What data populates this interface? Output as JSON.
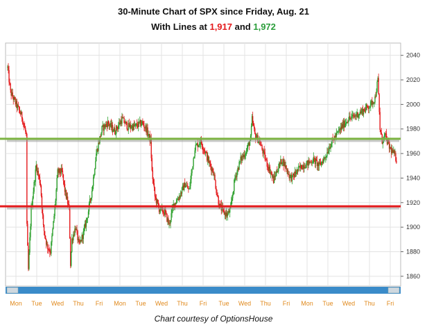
{
  "title": {
    "line1": "30-Minute Chart of SPX since Friday, Aug. 21",
    "line2_prefix": "With Lines at ",
    "line2_value1": "1,917",
    "line2_middle": " and ",
    "line2_value2": "1,972"
  },
  "credit": "Chart courtesy of OptionsHouse",
  "colors": {
    "up": "#2ca02c",
    "down": "#e41a1c",
    "upper_line": "#7cb342",
    "lower_line": "#e41a1c",
    "scrollbar": "#3a8bc9",
    "axis_text": "#333333",
    "day_text": "#e08a1e"
  },
  "chart_data": {
    "type": "candlestick",
    "title": "30-Minute Chart of SPX since Friday, Aug. 21",
    "x_ticks": [
      "Mon",
      "Tue",
      "Wed",
      "Thu",
      "Fri",
      "Mon",
      "Tue",
      "Wed",
      "Thu",
      "Fri",
      "Tue",
      "Wed",
      "Thu",
      "Fri",
      "Mon",
      "Tue",
      "Wed",
      "Thu",
      "Fri"
    ],
    "y_ticks": [
      1860,
      1880,
      1900,
      1920,
      1940,
      1960,
      1980,
      2000,
      2020,
      2040
    ],
    "ylim": [
      1852,
      2050
    ],
    "horizontal_lines": [
      {
        "value": 1972,
        "color": "#7cb342"
      },
      {
        "value": 1917,
        "color": "#e41a1c"
      }
    ],
    "grid": true,
    "price_path": [
      [
        0,
        2030
      ],
      [
        4,
        2010
      ],
      [
        12,
        2000
      ],
      [
        20,
        1990
      ],
      [
        26,
        1975
      ],
      [
        27,
        1900
      ],
      [
        29,
        1865
      ],
      [
        33,
        1915
      ],
      [
        40,
        1950
      ],
      [
        46,
        1935
      ],
      [
        50,
        1900
      ],
      [
        55,
        1885
      ],
      [
        60,
        1880
      ],
      [
        66,
        1915
      ],
      [
        70,
        1945
      ],
      [
        76,
        1945
      ],
      [
        80,
        1930
      ],
      [
        86,
        1915
      ],
      [
        88,
        1870
      ],
      [
        90,
        1890
      ],
      [
        95,
        1900
      ],
      [
        100,
        1885
      ],
      [
        106,
        1895
      ],
      [
        112,
        1910
      ],
      [
        118,
        1930
      ],
      [
        124,
        1960
      ],
      [
        132,
        1980
      ],
      [
        140,
        1985
      ],
      [
        150,
        1978
      ],
      [
        160,
        1988
      ],
      [
        168,
        1982
      ],
      [
        178,
        1982
      ],
      [
        188,
        1985
      ],
      [
        194,
        1980
      ],
      [
        200,
        1970
      ],
      [
        202,
        1945
      ],
      [
        206,
        1925
      ],
      [
        212,
        1915
      ],
      [
        220,
        1912
      ],
      [
        226,
        1902
      ],
      [
        232,
        1918
      ],
      [
        240,
        1925
      ],
      [
        248,
        1935
      ],
      [
        254,
        1930
      ],
      [
        262,
        1965
      ],
      [
        270,
        1970
      ],
      [
        276,
        1962
      ],
      [
        282,
        1952
      ],
      [
        288,
        1945
      ],
      [
        292,
        1930
      ],
      [
        296,
        1918
      ],
      [
        302,
        1912
      ],
      [
        308,
        1910
      ],
      [
        312,
        1915
      ],
      [
        318,
        1940
      ],
      [
        326,
        1955
      ],
      [
        334,
        1962
      ],
      [
        340,
        1972
      ],
      [
        342,
        1988
      ],
      [
        346,
        1975
      ],
      [
        352,
        1970
      ],
      [
        358,
        1960
      ],
      [
        364,
        1950
      ],
      [
        368,
        1945
      ],
      [
        372,
        1938
      ],
      [
        378,
        1948
      ],
      [
        384,
        1955
      ],
      [
        390,
        1948
      ],
      [
        394,
        1942
      ],
      [
        398,
        1940
      ],
      [
        404,
        1945
      ],
      [
        412,
        1950
      ],
      [
        420,
        1952
      ],
      [
        428,
        1955
      ],
      [
        436,
        1950
      ],
      [
        444,
        1957
      ],
      [
        452,
        1968
      ],
      [
        460,
        1975
      ],
      [
        468,
        1982
      ],
      [
        476,
        1988
      ],
      [
        484,
        1990
      ],
      [
        492,
        1993
      ],
      [
        500,
        1996
      ],
      [
        508,
        2000
      ],
      [
        514,
        2005
      ],
      [
        518,
        2020
      ],
      [
        521,
        1980
      ],
      [
        524,
        1970
      ],
      [
        528,
        1975
      ],
      [
        534,
        1965
      ],
      [
        540,
        1960
      ],
      [
        544,
        1955
      ]
    ]
  }
}
